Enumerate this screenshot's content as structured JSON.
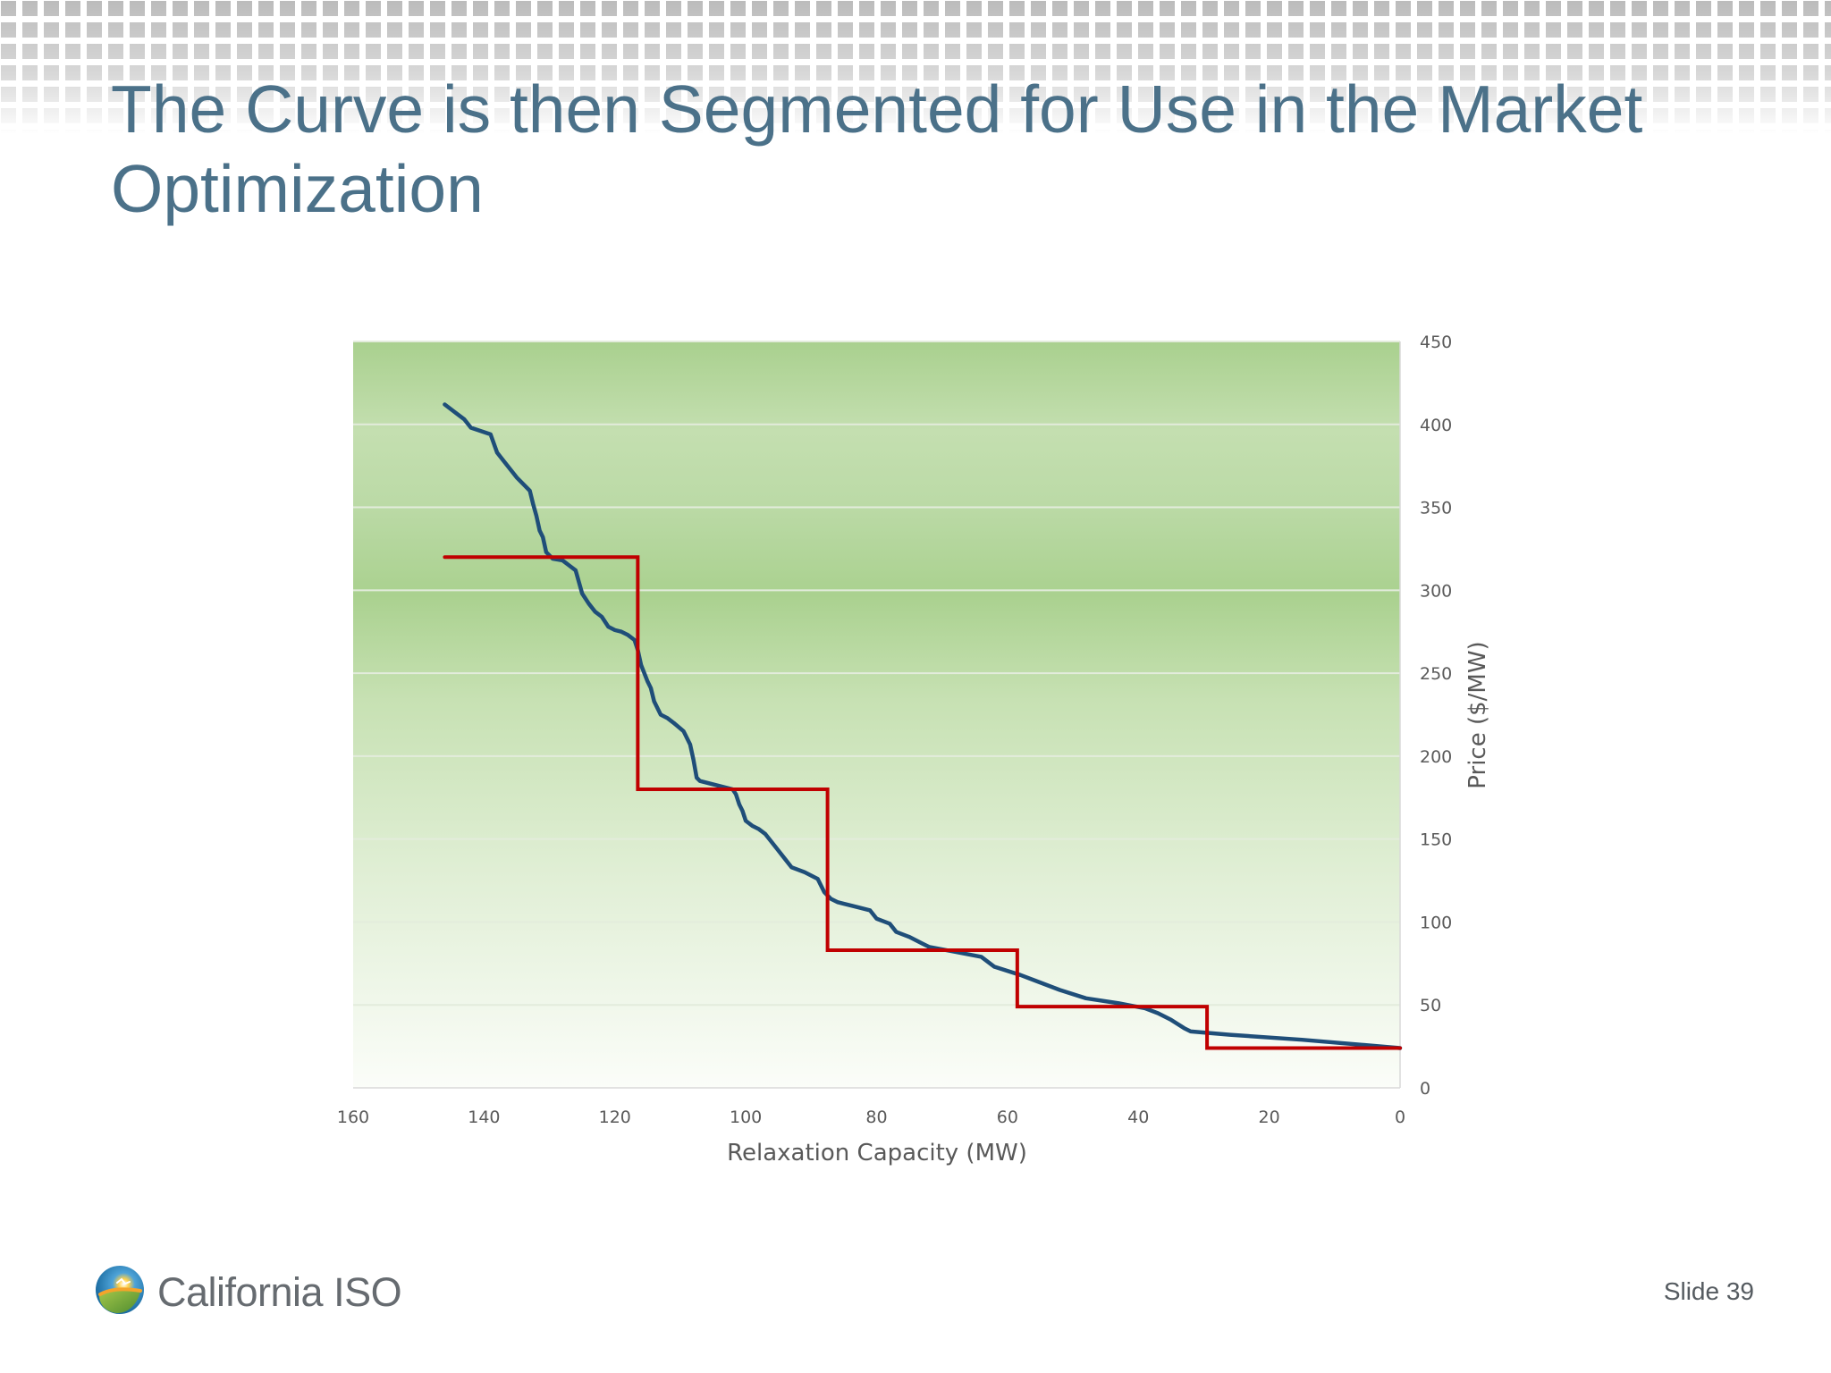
{
  "slide": {
    "title": "The Curve is then Segmented for Use in the Market\nOptimization",
    "logo_text": "California ISO",
    "slide_number": "Slide 39"
  },
  "colors": {
    "title": "#4b7189",
    "curve": "#1f4e79",
    "segments": "#c00000",
    "plot_green": "#a9d08e",
    "background": "#ffffff"
  },
  "icons": {
    "logo": "california-iso-logo-icon"
  },
  "chart_data": {
    "type": "line",
    "title": "",
    "xlabel": "Relaxation Capacity (MW)",
    "ylabel": "Price ($/MW)",
    "xlim": [
      160,
      0
    ],
    "ylim": [
      0,
      450
    ],
    "x_reversed": true,
    "y_axis_position": "right",
    "grid": true,
    "legend": "none",
    "x_ticks": [
      "160",
      "140",
      "120",
      "100",
      "80",
      "60",
      "40",
      "20",
      "0"
    ],
    "y_ticks": [
      "0",
      "50",
      "100",
      "150",
      "200",
      "250",
      "300",
      "350",
      "400",
      "450"
    ],
    "series": [
      {
        "color": "#1f4e79",
        "points": [
          [
            146,
            412
          ],
          [
            143,
            403
          ],
          [
            142,
            398
          ],
          [
            139,
            394
          ],
          [
            138,
            383
          ],
          [
            137,
            378
          ],
          [
            136,
            373
          ],
          [
            135,
            368
          ],
          [
            134,
            364
          ],
          [
            133,
            360
          ],
          [
            132.5,
            352
          ],
          [
            132,
            345
          ],
          [
            131.5,
            336
          ],
          [
            131,
            332
          ],
          [
            130.5,
            323
          ],
          [
            129.5,
            319
          ],
          [
            128,
            318
          ],
          [
            127,
            315
          ],
          [
            126,
            312
          ],
          [
            125.5,
            305
          ],
          [
            125,
            298
          ],
          [
            124,
            292
          ],
          [
            123,
            287
          ],
          [
            122,
            284
          ],
          [
            121,
            278
          ],
          [
            120,
            276
          ],
          [
            119,
            275
          ],
          [
            118,
            273
          ],
          [
            117,
            270
          ],
          [
            116.5,
            264
          ],
          [
            116,
            255
          ],
          [
            115,
            245
          ],
          [
            114.5,
            241
          ],
          [
            114,
            233
          ],
          [
            113,
            225
          ],
          [
            112,
            223
          ],
          [
            111,
            220
          ],
          [
            109.5,
            215
          ],
          [
            108.5,
            207
          ],
          [
            108,
            198
          ],
          [
            107.5,
            187
          ],
          [
            107,
            185
          ],
          [
            104,
            182
          ],
          [
            102,
            180
          ],
          [
            101.5,
            177
          ],
          [
            101,
            171
          ],
          [
            100.5,
            167
          ],
          [
            100,
            161
          ],
          [
            99,
            158
          ],
          [
            98,
            156
          ],
          [
            97,
            153
          ],
          [
            96,
            148
          ],
          [
            95,
            143
          ],
          [
            94,
            138
          ],
          [
            93,
            133
          ],
          [
            91,
            130
          ],
          [
            89,
            126
          ],
          [
            88,
            118
          ],
          [
            87,
            114
          ],
          [
            86,
            112
          ],
          [
            85,
            111
          ],
          [
            83,
            109
          ],
          [
            81,
            107
          ],
          [
            80,
            102
          ],
          [
            78,
            99
          ],
          [
            77,
            94
          ],
          [
            75,
            91
          ],
          [
            73,
            87
          ],
          [
            72,
            85
          ],
          [
            68,
            82
          ],
          [
            64,
            79
          ],
          [
            62,
            73
          ],
          [
            58,
            68
          ],
          [
            56,
            65
          ],
          [
            52,
            59
          ],
          [
            48,
            54
          ],
          [
            43,
            51
          ],
          [
            39,
            48
          ],
          [
            37,
            45
          ],
          [
            35,
            41
          ],
          [
            33,
            36
          ],
          [
            32,
            34
          ],
          [
            26,
            32
          ],
          [
            15,
            29
          ],
          [
            0,
            24
          ]
        ]
      },
      {
        "color": "#c00000",
        "points": [
          [
            146,
            320
          ],
          [
            116.5,
            320
          ],
          [
            116.5,
            180
          ],
          [
            87.5,
            180
          ],
          [
            87.5,
            83
          ],
          [
            58.5,
            83
          ],
          [
            58.5,
            49
          ],
          [
            29.5,
            49
          ],
          [
            29.5,
            24
          ],
          [
            0,
            24
          ]
        ]
      }
    ]
  }
}
